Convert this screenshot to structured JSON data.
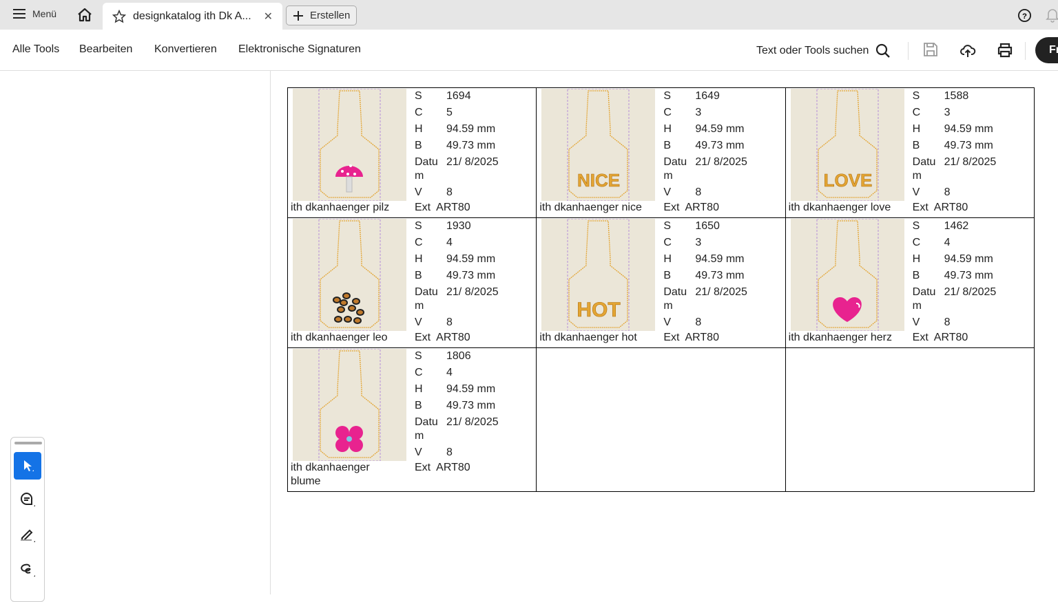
{
  "tabbar": {
    "menu_label": "Menü",
    "tab_title": "designkatalog ith Dk A...",
    "create_label": "Erstellen"
  },
  "toolbar": {
    "items": [
      "Alle Tools",
      "Bearbeiten",
      "Konvertieren",
      "Elektronische Signaturen"
    ],
    "search_label": "Text oder Tools suchen",
    "share_label": "Fr"
  },
  "colors": {
    "accent": "#1473e6",
    "thumb_bg": "#ebe6d8",
    "outline": "#e3a534",
    "pink": "#e8238f"
  },
  "labels": {
    "s": "S",
    "c": "C",
    "h": "H",
    "b": "B",
    "datum": "Datum",
    "v": "V",
    "ext": "Ext"
  },
  "designs": [
    {
      "name": "ith dkanhaenger pilz",
      "motif": "mushroom",
      "S": "1694",
      "C": "5",
      "H": "94.59 mm",
      "B": "49.73 mm",
      "Datum": "21/ 8/2025",
      "V": "8",
      "Ext": "ART80"
    },
    {
      "name": "ith dkanhaenger nice",
      "motif": "NICE",
      "S": "1649",
      "C": "3",
      "H": "94.59 mm",
      "B": "49.73 mm",
      "Datum": "21/ 8/2025",
      "V": "8",
      "Ext": "ART80"
    },
    {
      "name": "ith dkanhaenger love",
      "motif": "LOVE",
      "S": "1588",
      "C": "3",
      "H": "94.59 mm",
      "B": "49.73 mm",
      "Datum": "21/ 8/2025",
      "V": "8",
      "Ext": "ART80"
    },
    {
      "name": "ith dkanhaenger leo",
      "motif": "leopard",
      "S": "1930",
      "C": "4",
      "H": "94.59 mm",
      "B": "49.73 mm",
      "Datum": "21/ 8/2025",
      "V": "8",
      "Ext": "ART80"
    },
    {
      "name": "ith dkanhaenger hot",
      "motif": "HOT",
      "S": "1650",
      "C": "3",
      "H": "94.59 mm",
      "B": "49.73 mm",
      "Datum": "21/ 8/2025",
      "V": "8",
      "Ext": "ART80"
    },
    {
      "name": "ith dkanhaenger herz",
      "motif": "heart",
      "S": "1462",
      "C": "4",
      "H": "94.59 mm",
      "B": "49.73 mm",
      "Datum": "21/ 8/2025",
      "V": "8",
      "Ext": "ART80"
    },
    {
      "name": "ith dkanhaenger blume",
      "motif": "flower",
      "S": "1806",
      "C": "4",
      "H": "94.59 mm",
      "B": "49.73 mm",
      "Datum": "21/ 8/2025",
      "V": "8",
      "Ext": "ART80"
    }
  ]
}
